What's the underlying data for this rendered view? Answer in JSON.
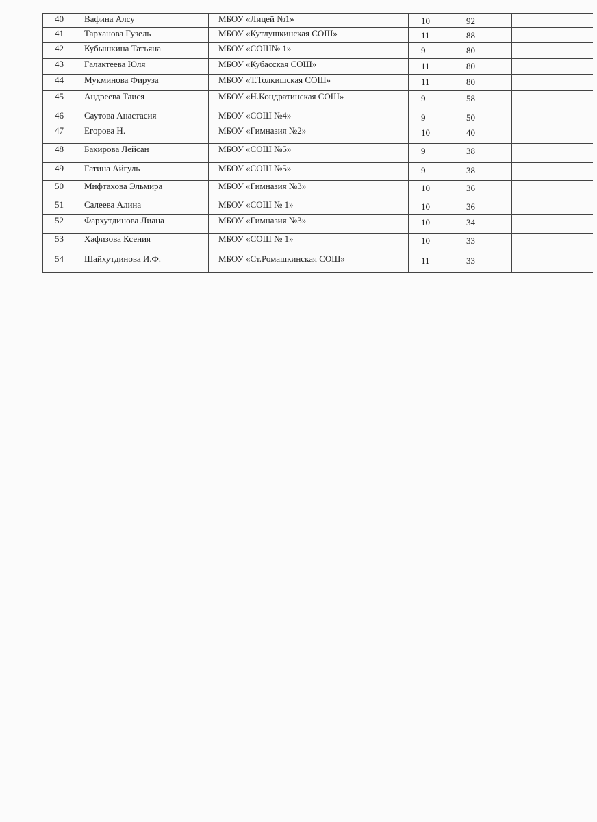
{
  "rows": [
    {
      "num": "40",
      "name": "Вафина Алсу",
      "school": "МБОУ «Лицей №1»",
      "grade": "10",
      "score": "92"
    },
    {
      "num": "41",
      "name": "Тарханова Гузель",
      "school": "МБОУ «Кутлушкинская СОШ»",
      "grade": "11",
      "score": "88"
    },
    {
      "num": "42",
      "name": "Кубышкина Татьяна",
      "school": "МБОУ «СОШ№ 1»",
      "grade": "9",
      "score": "80"
    },
    {
      "num": "43",
      "name": "Галактеева  Юля",
      "school": "МБОУ «Кубасская СОШ»",
      "grade": "11",
      "score": "80"
    },
    {
      "num": "44",
      "name": "Мукминова Фируза",
      "school": "МБОУ «Т.Толкишская СОШ»",
      "grade": "11",
      "score": "80"
    },
    {
      "num": "45",
      "name": "Андреева Таися",
      "school": "МБОУ «Н.Кондратинская СОШ»",
      "grade": "9",
      "score": "58"
    },
    {
      "num": "46",
      "name": "Саутова   Анастасия",
      "school": "МБОУ «СОШ №4»",
      "grade": "9",
      "score": "50"
    },
    {
      "num": "47",
      "name": "Егорова Н.",
      "school": "МБОУ «Гимназия №2»",
      "grade": "10",
      "score": "40"
    },
    {
      "num": "48",
      "name": "Бакирова  Лейсан",
      "school": "МБОУ «СОШ №5»",
      "grade": "9",
      "score": "38"
    },
    {
      "num": "49",
      "name": "Гатина  Айгуль",
      "school": "МБОУ «СОШ №5»",
      "grade": "9",
      "score": "38"
    },
    {
      "num": "50",
      "name": "Мифтахова Эльмира",
      "school": "МБОУ «Гимназия №3»",
      "grade": "10",
      "score": "36"
    },
    {
      "num": "51",
      "name": "Салеева  Алина",
      "school": "МБОУ «СОШ № 1»",
      "grade": "10",
      "score": "36"
    },
    {
      "num": "52",
      "name": "Фархутдинова Лиана",
      "school": "МБОУ «Гимназия №3»",
      "grade": "10",
      "score": "34"
    },
    {
      "num": "53",
      "name": "Хафизова  Ксения",
      "school": "МБОУ «СОШ № 1»",
      "grade": "10",
      "score": "33"
    },
    {
      "num": "54",
      "name": "Шайхутдинова  И.Ф.",
      "school": "МБОУ «Ст.Ромашкинская СОШ»",
      "grade": "11",
      "score": "33"
    }
  ]
}
